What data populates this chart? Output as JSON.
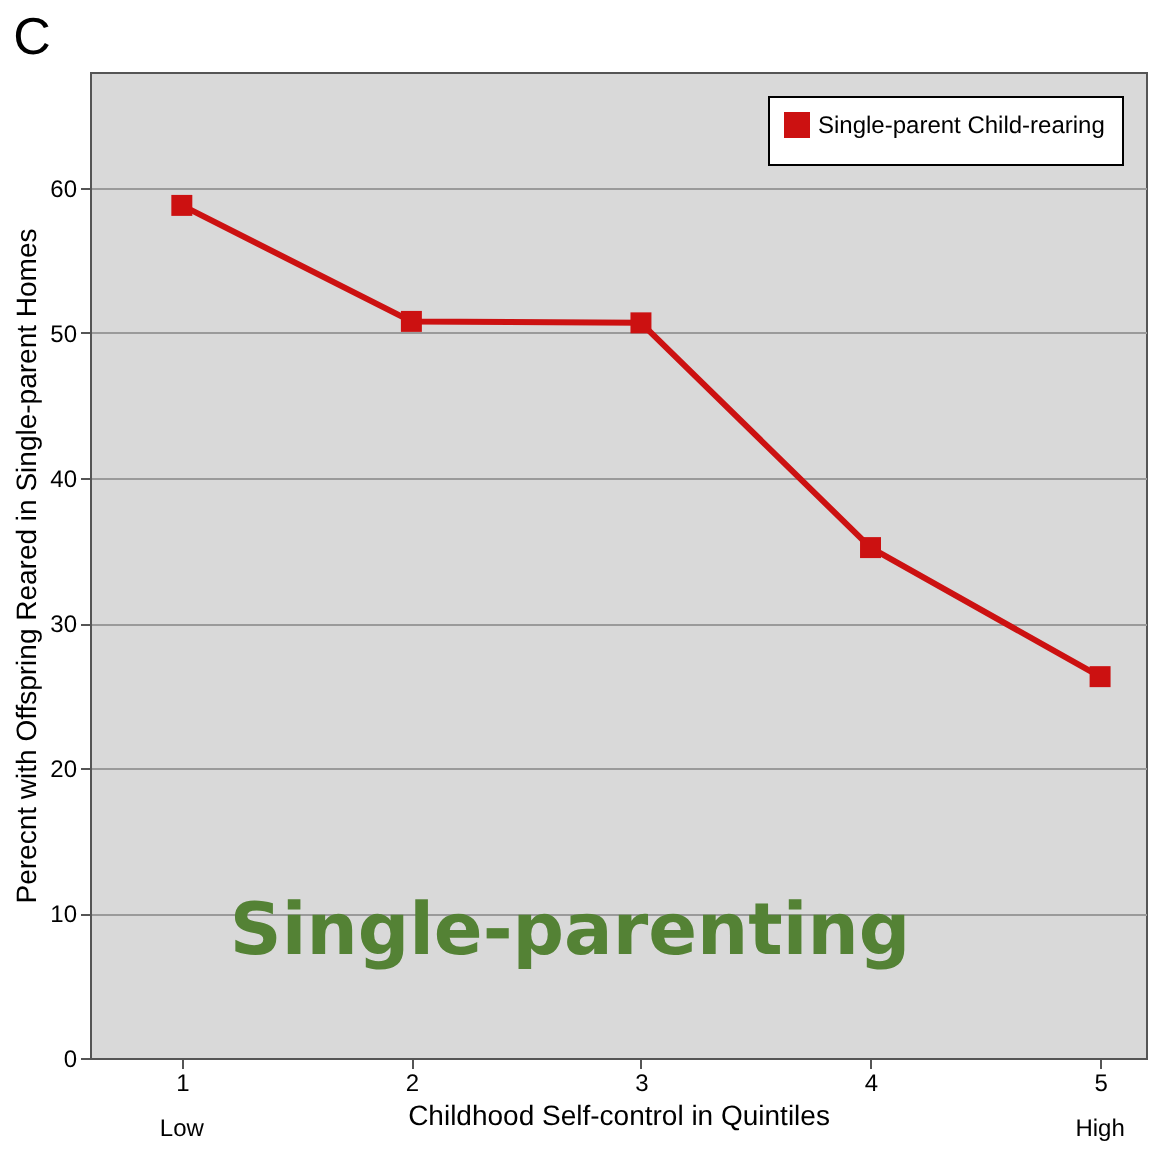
{
  "chart_data": {
    "type": "line",
    "title": "C",
    "xlabel": "Childhood Self-control in Quintiles",
    "ylabel": "Perecnt with Offspring Reared in Single-parent Homes",
    "x": [
      1,
      2,
      3,
      4,
      5
    ],
    "series": [
      {
        "name": "Single-parent Child-rearing",
        "color": "#cc1111",
        "values": [
          58.8,
          50.8,
          50.7,
          35.2,
          26.3
        ]
      }
    ],
    "xlim": [
      0.6,
      5.2
    ],
    "xticks": [
      1,
      2,
      3,
      4,
      5
    ],
    "ylim": [
      0,
      68
    ],
    "yticks": [
      0,
      10,
      20,
      30,
      40,
      50,
      60
    ],
    "grid": "y",
    "legend": "top right",
    "marker": "square",
    "line_style": "solid",
    "annotations": [
      "Single-parenting",
      "Low",
      "High"
    ]
  }
}
